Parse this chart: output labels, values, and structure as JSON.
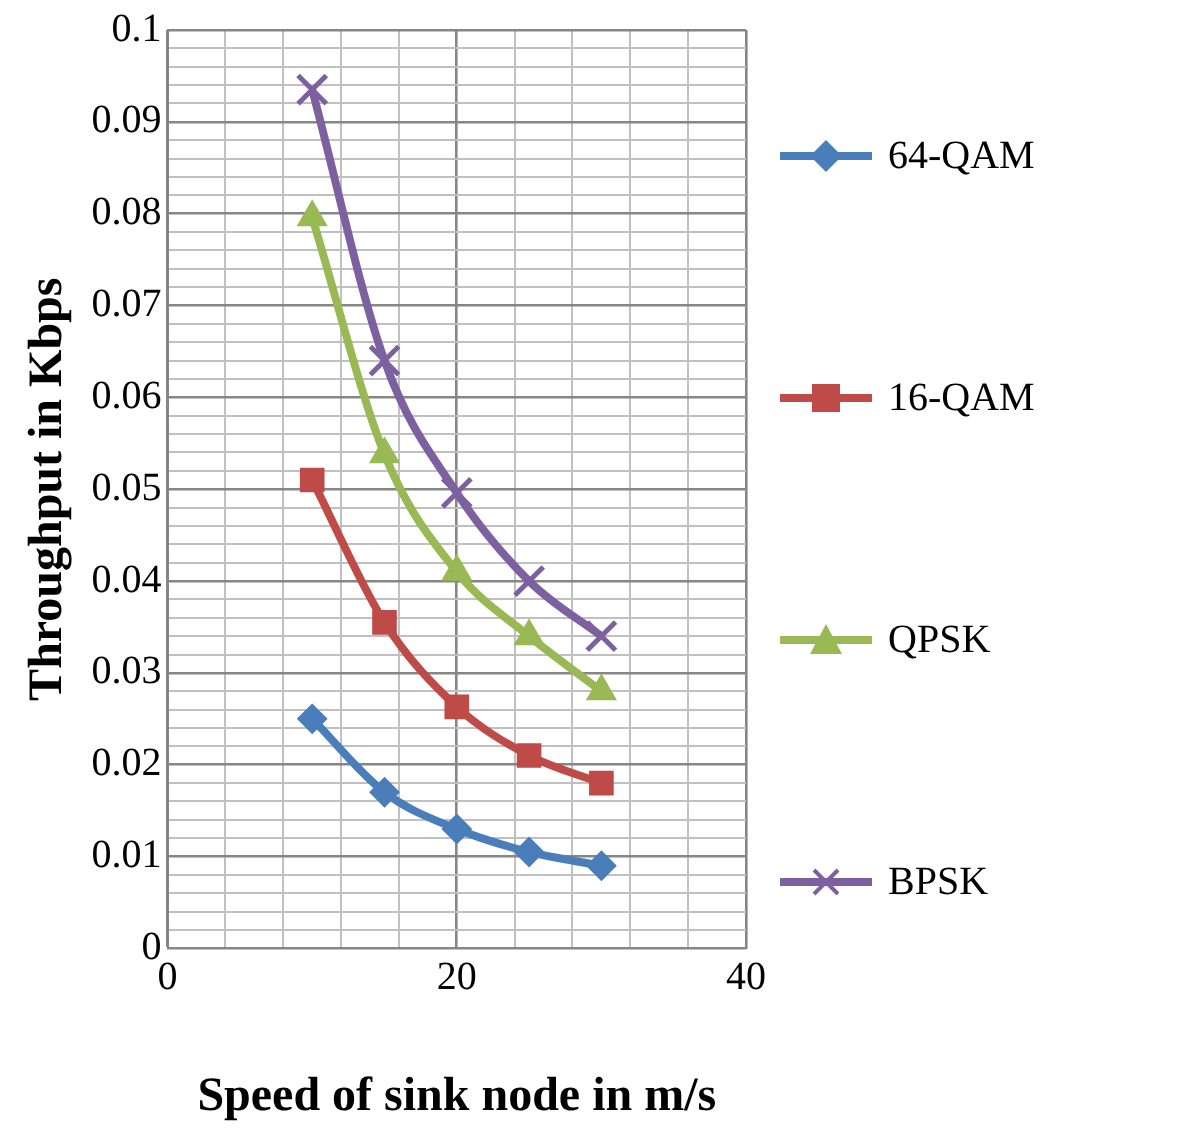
{
  "chart_data": {
    "type": "line",
    "xlabel": "Speed of sink node in m/s",
    "ylabel": "Throughput in Kbps",
    "x": [
      10,
      15,
      20,
      25,
      30
    ],
    "xlim": [
      0,
      40
    ],
    "xticks": [
      0,
      {
        "value": 4,
        "label": null
      },
      {
        "value": 8,
        "label": null
      },
      {
        "value": 12,
        "label": null
      },
      {
        "value": 16,
        "label": null
      },
      20,
      {
        "value": 24,
        "label": null
      },
      {
        "value": 28,
        "label": null
      },
      {
        "value": 32,
        "label": null
      },
      {
        "value": 36,
        "label": null
      },
      40
    ],
    "ylim": [
      0,
      0.1
    ],
    "yticks": [
      0,
      {
        "value": 0.002,
        "label": null
      },
      {
        "value": 0.004,
        "label": null
      },
      {
        "value": 0.006,
        "label": null
      },
      {
        "value": 0.008,
        "label": null
      },
      0.01,
      {
        "value": 0.012,
        "label": null
      },
      {
        "value": 0.014,
        "label": null
      },
      {
        "value": 0.016,
        "label": null
      },
      {
        "value": 0.018,
        "label": null
      },
      0.02,
      {
        "value": 0.022,
        "label": null
      },
      {
        "value": 0.024,
        "label": null
      },
      {
        "value": 0.026,
        "label": null
      },
      {
        "value": 0.028,
        "label": null
      },
      0.03,
      {
        "value": 0.032,
        "label": null
      },
      {
        "value": 0.034,
        "label": null
      },
      {
        "value": 0.036,
        "label": null
      },
      {
        "value": 0.038,
        "label": null
      },
      0.04,
      {
        "value": 0.042,
        "label": null
      },
      {
        "value": 0.044,
        "label": null
      },
      {
        "value": 0.046,
        "label": null
      },
      {
        "value": 0.048,
        "label": null
      },
      0.05,
      {
        "value": 0.052,
        "label": null
      },
      {
        "value": 0.054,
        "label": null
      },
      {
        "value": 0.056,
        "label": null
      },
      {
        "value": 0.058,
        "label": null
      },
      0.06,
      {
        "value": 0.062,
        "label": null
      },
      {
        "value": 0.064,
        "label": null
      },
      {
        "value": 0.066,
        "label": null
      },
      {
        "value": 0.068,
        "label": null
      },
      0.07,
      {
        "value": 0.072,
        "label": null
      },
      {
        "value": 0.074,
        "label": null
      },
      {
        "value": 0.076,
        "label": null
      },
      {
        "value": 0.078,
        "label": null
      },
      0.08,
      {
        "value": 0.082,
        "label": null
      },
      {
        "value": 0.084,
        "label": null
      },
      {
        "value": 0.086,
        "label": null
      },
      {
        "value": 0.088,
        "label": null
      },
      0.09,
      {
        "value": 0.092,
        "label": null
      },
      {
        "value": 0.094,
        "label": null
      },
      {
        "value": 0.096,
        "label": null
      },
      {
        "value": 0.098,
        "label": null
      },
      0.1
    ],
    "grid": true,
    "legend": "right",
    "series": [
      {
        "name": "64-QAM",
        "color": "#4a7ebb",
        "marker": "diamond",
        "values": [
          0.025,
          0.017,
          0.013,
          0.0105,
          0.009
        ]
      },
      {
        "name": "16-QAM",
        "color": "#be4b48",
        "marker": "square",
        "values": [
          0.051,
          0.0355,
          0.0263,
          0.021,
          0.018
        ]
      },
      {
        "name": "QPSK",
        "color": "#98b954",
        "marker": "triangle",
        "values": [
          0.0796,
          0.0538,
          0.041,
          0.034,
          0.028
        ]
      },
      {
        "name": "BPSK",
        "color": "#7d60a0",
        "marker": "cross",
        "values": [
          0.0935,
          0.064,
          0.0496,
          0.04,
          0.034
        ]
      }
    ]
  }
}
